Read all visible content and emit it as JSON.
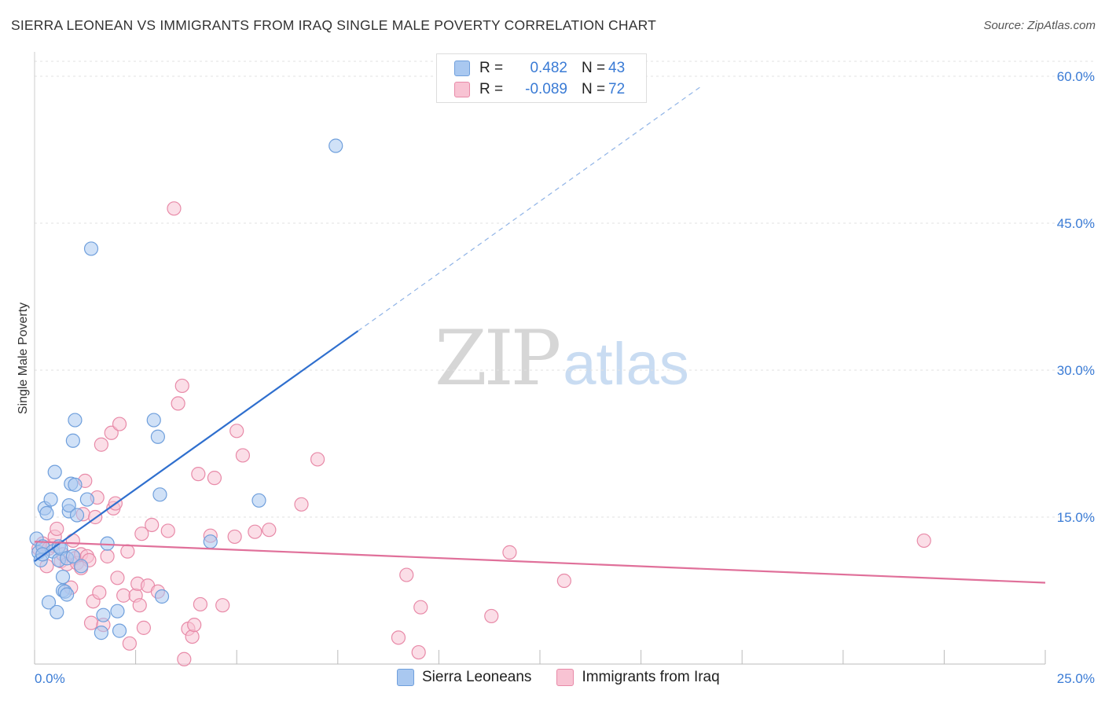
{
  "title": "SIERRA LEONEAN VS IMMIGRANTS FROM IRAQ SINGLE MALE POVERTY CORRELATION CHART",
  "source": "Source: ZipAtlas.com",
  "watermark": {
    "zip": "ZIP",
    "atlas": "atlas"
  },
  "legend": {
    "rows": [
      {
        "r_label": "R =",
        "r_value": "0.482",
        "n_label": "N =",
        "n_value": "43",
        "color": "#a9c8f0",
        "border": "#6f9fdc"
      },
      {
        "r_label": "R =",
        "r_value": "-0.089",
        "n_label": "N =",
        "n_value": "72",
        "color": "#f8c3d3",
        "border": "#e88aa8"
      }
    ]
  },
  "bottom_legend": [
    {
      "label": "Sierra Leoneans",
      "color": "#a9c8f0",
      "border": "#6f9fdc"
    },
    {
      "label": "Immigrants from Iraq",
      "color": "#f8c3d3",
      "border": "#e88aa8"
    }
  ],
  "chart_data": {
    "type": "scatter",
    "title": "SIERRA LEONEAN VS IMMIGRANTS FROM IRAQ SINGLE MALE POVERTY CORRELATION CHART",
    "xlabel": "",
    "ylabel": "Single Male Poverty",
    "xlim": [
      0,
      25
    ],
    "ylim": [
      0,
      60
    ],
    "x_tick_labels": [
      "0.0%",
      "25.0%"
    ],
    "y_tick_labels": [
      "15.0%",
      "30.0%",
      "45.0%",
      "60.0%"
    ],
    "y_ticks": [
      15,
      30,
      45,
      60
    ],
    "grid": true,
    "legend_position": "top-center",
    "series": [
      {
        "name": "Sierra Leoneans",
        "color": "#6f9fdc",
        "fill": "#a9c8f0",
        "trend": {
          "x0": 0,
          "y0": 10.5,
          "x1": 8.0,
          "y1": 34.0,
          "dashed_to_x": 16.5,
          "dashed_to_y": 59.0,
          "color": "#2f6fce"
        },
        "points": [
          [
            0.05,
            12.8
          ],
          [
            0.1,
            11.4
          ],
          [
            0.15,
            10.6
          ],
          [
            0.2,
            12.0
          ],
          [
            0.25,
            15.9
          ],
          [
            0.3,
            15.4
          ],
          [
            0.35,
            6.3
          ],
          [
            0.4,
            16.8
          ],
          [
            0.45,
            11.5
          ],
          [
            0.5,
            19.6
          ],
          [
            0.55,
            5.3
          ],
          [
            0.6,
            10.6
          ],
          [
            0.6,
            12.0
          ],
          [
            0.65,
            11.8
          ],
          [
            0.7,
            8.9
          ],
          [
            0.7,
            7.5
          ],
          [
            0.75,
            7.4
          ],
          [
            0.8,
            10.8
          ],
          [
            0.8,
            7.1
          ],
          [
            0.85,
            15.6
          ],
          [
            0.85,
            16.2
          ],
          [
            0.9,
            18.4
          ],
          [
            0.95,
            22.8
          ],
          [
            0.95,
            11.0
          ],
          [
            1.0,
            24.9
          ],
          [
            1.0,
            18.3
          ],
          [
            1.05,
            15.2
          ],
          [
            1.15,
            10.0
          ],
          [
            1.3,
            16.8
          ],
          [
            1.4,
            42.4
          ],
          [
            1.65,
            3.2
          ],
          [
            1.7,
            5.0
          ],
          [
            1.8,
            12.3
          ],
          [
            2.05,
            5.4
          ],
          [
            2.1,
            3.4
          ],
          [
            2.95,
            24.9
          ],
          [
            3.05,
            23.2
          ],
          [
            3.1,
            17.3
          ],
          [
            3.15,
            6.9
          ],
          [
            4.35,
            12.5
          ],
          [
            5.55,
            16.7
          ],
          [
            7.45,
            52.9
          ],
          [
            0.2,
            11.2
          ]
        ]
      },
      {
        "name": "Immigrants from Iraq",
        "color": "#e88aa8",
        "fill": "#f8c3d3",
        "trend": {
          "x0": 0,
          "y0": 12.5,
          "x1": 25.0,
          "y1": 8.3,
          "color": "#e0709a"
        },
        "points": [
          [
            0.1,
            11.8
          ],
          [
            0.2,
            12.3
          ],
          [
            0.3,
            10.0
          ],
          [
            0.35,
            11.8
          ],
          [
            0.45,
            12.1
          ],
          [
            0.5,
            13.0
          ],
          [
            0.55,
            13.8
          ],
          [
            0.65,
            10.5
          ],
          [
            0.7,
            11.2
          ],
          [
            0.8,
            10.2
          ],
          [
            0.9,
            7.8
          ],
          [
            0.95,
            12.6
          ],
          [
            1.0,
            10.8
          ],
          [
            1.05,
            10.3
          ],
          [
            1.15,
            11.2
          ],
          [
            1.2,
            15.3
          ],
          [
            1.25,
            18.7
          ],
          [
            1.3,
            11.0
          ],
          [
            1.35,
            10.6
          ],
          [
            1.4,
            4.2
          ],
          [
            1.45,
            6.4
          ],
          [
            1.5,
            15.0
          ],
          [
            1.55,
            17.0
          ],
          [
            1.6,
            7.3
          ],
          [
            1.65,
            22.4
          ],
          [
            1.7,
            4.0
          ],
          [
            1.8,
            11.0
          ],
          [
            1.9,
            23.6
          ],
          [
            1.95,
            15.9
          ],
          [
            2.0,
            16.4
          ],
          [
            2.05,
            8.8
          ],
          [
            2.1,
            24.5
          ],
          [
            2.2,
            7.0
          ],
          [
            2.3,
            11.5
          ],
          [
            2.35,
            2.1
          ],
          [
            2.5,
            7.0
          ],
          [
            2.55,
            8.2
          ],
          [
            2.6,
            6.0
          ],
          [
            2.65,
            13.3
          ],
          [
            2.7,
            3.7
          ],
          [
            2.8,
            8.0
          ],
          [
            2.9,
            14.2
          ],
          [
            3.05,
            7.4
          ],
          [
            3.3,
            13.6
          ],
          [
            3.45,
            46.5
          ],
          [
            3.55,
            26.6
          ],
          [
            3.65,
            28.4
          ],
          [
            3.7,
            0.5
          ],
          [
            3.8,
            3.6
          ],
          [
            3.9,
            2.8
          ],
          [
            3.95,
            4.0
          ],
          [
            4.05,
            19.4
          ],
          [
            4.1,
            6.1
          ],
          [
            4.35,
            13.1
          ],
          [
            4.45,
            19.0
          ],
          [
            4.65,
            6.0
          ],
          [
            4.95,
            13.0
          ],
          [
            5.0,
            23.8
          ],
          [
            5.15,
            21.3
          ],
          [
            5.45,
            13.5
          ],
          [
            5.8,
            13.7
          ],
          [
            6.6,
            16.3
          ],
          [
            7.0,
            20.9
          ],
          [
            9.0,
            2.7
          ],
          [
            9.2,
            9.1
          ],
          [
            9.5,
            1.2
          ],
          [
            9.55,
            5.8
          ],
          [
            11.3,
            4.9
          ],
          [
            11.75,
            11.4
          ],
          [
            13.1,
            8.5
          ],
          [
            22.0,
            12.6
          ],
          [
            1.15,
            9.8
          ]
        ]
      }
    ]
  }
}
